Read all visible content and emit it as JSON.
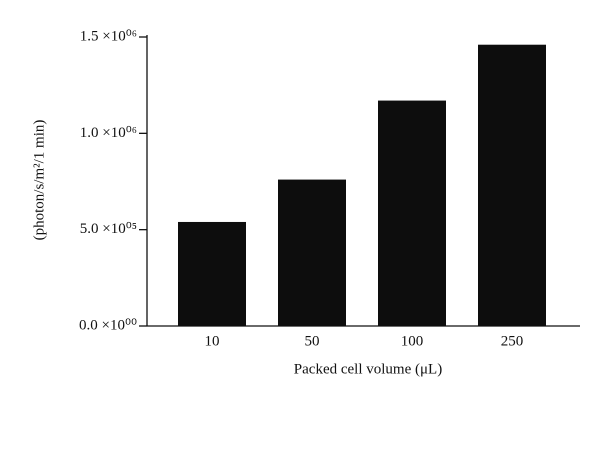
{
  "chart_data": {
    "type": "bar",
    "y_label": "(photon/s/m²/1 min)",
    "x_label": "Packed cell volume (μL)",
    "categories": [
      "10",
      "50",
      "100",
      "250"
    ],
    "values": [
      540000,
      760000,
      1170000,
      1460000
    ],
    "color": "#0d0d0d",
    "ylim": [
      0,
      1500000
    ],
    "yticks": [
      {
        "value": 0,
        "label": "0.0 ×10⁰⁰"
      },
      {
        "value": 500000,
        "label": "5.0 ×10⁰⁵"
      },
      {
        "value": 1000000,
        "label": "1.0 ×10⁰⁶"
      },
      {
        "value": 1500000,
        "label": "1.5 ×10⁰⁶"
      }
    ],
    "grid": false
  }
}
